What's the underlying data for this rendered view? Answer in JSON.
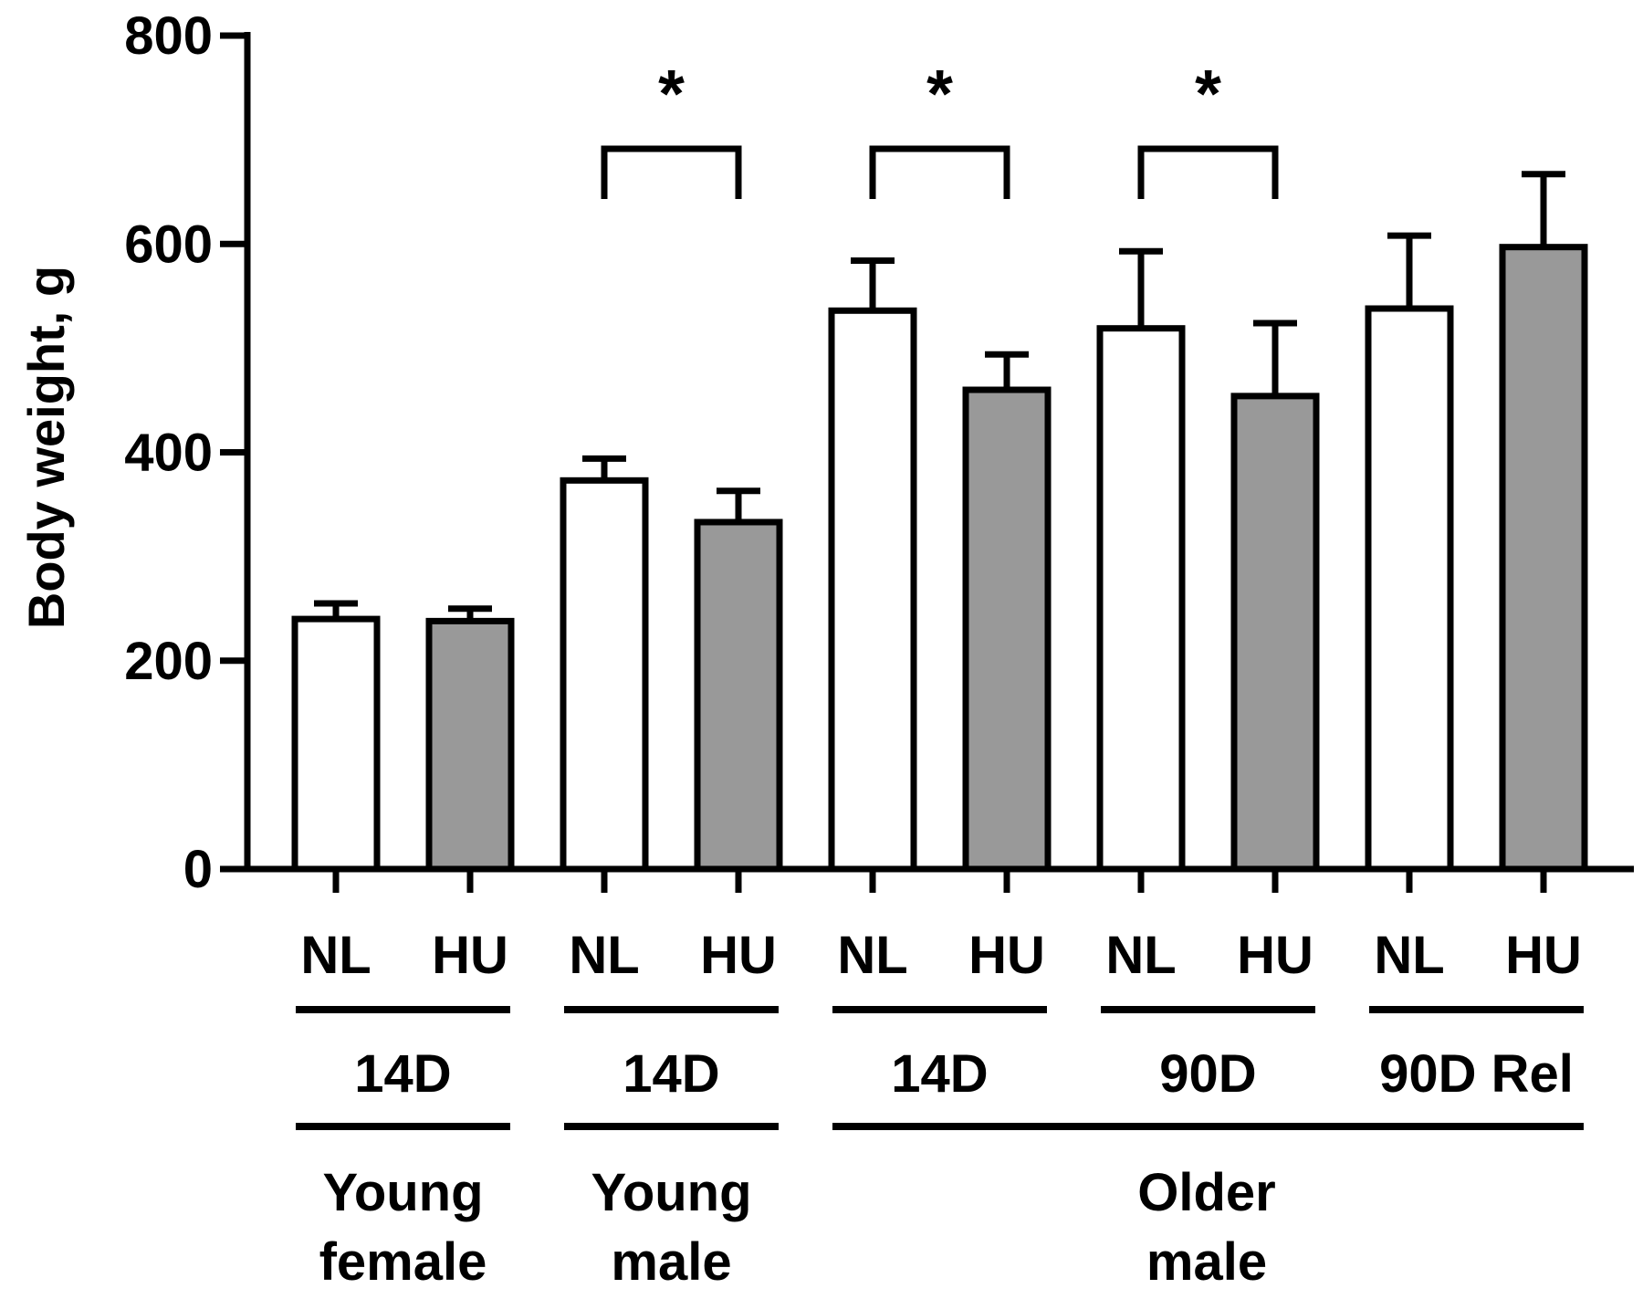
{
  "chart_data": {
    "type": "bar",
    "title": "",
    "xlabel": "",
    "ylabel": "Body weight, g",
    "ylim": [
      0,
      800
    ],
    "yticks": [
      0,
      200,
      400,
      600,
      800
    ],
    "grid": false,
    "legend": "none",
    "bars": [
      {
        "label": "NL",
        "condition": "NL",
        "value": 240,
        "error": 15
      },
      {
        "label": "HU",
        "condition": "HU",
        "value": 238,
        "error": 12
      },
      {
        "label": "NL",
        "condition": "NL",
        "value": 373,
        "error": 21
      },
      {
        "label": "HU",
        "condition": "HU",
        "value": 333,
        "error": 30
      },
      {
        "label": "NL",
        "condition": "NL",
        "value": 536,
        "error": 48
      },
      {
        "label": "HU",
        "condition": "HU",
        "value": 460,
        "error": 34
      },
      {
        "label": "NL",
        "condition": "NL",
        "value": 519,
        "error": 74
      },
      {
        "label": "HU",
        "condition": "HU",
        "value": 454,
        "error": 70
      },
      {
        "label": "NL",
        "condition": "NL",
        "value": 538,
        "error": 70
      },
      {
        "label": "HU",
        "condition": "HU",
        "value": 597,
        "error": 70
      }
    ],
    "durations": [
      {
        "label": "14D",
        "bars": [
          0,
          1
        ]
      },
      {
        "label": "14D",
        "bars": [
          2,
          3
        ]
      },
      {
        "label": "14D",
        "bars": [
          4,
          5
        ]
      },
      {
        "label": "90D",
        "bars": [
          6,
          7
        ]
      },
      {
        "label": "90D Rel",
        "bars": [
          8,
          9
        ]
      }
    ],
    "groups": [
      {
        "line1": "Young",
        "line2": "female",
        "bars": [
          0,
          1
        ]
      },
      {
        "line1": "Young",
        "line2": "male",
        "bars": [
          2,
          3
        ]
      },
      {
        "line1": "Older",
        "line2": "male",
        "bars": [
          4,
          9
        ]
      }
    ],
    "significance": [
      {
        "bars": [
          2,
          3
        ],
        "label": "*"
      },
      {
        "bars": [
          4,
          5
        ],
        "label": "*"
      },
      {
        "bars": [
          6,
          7
        ],
        "label": "*"
      }
    ],
    "colors": {
      "NL": "#ffffff",
      "HU": "#999999",
      "stroke": "#000000"
    }
  }
}
